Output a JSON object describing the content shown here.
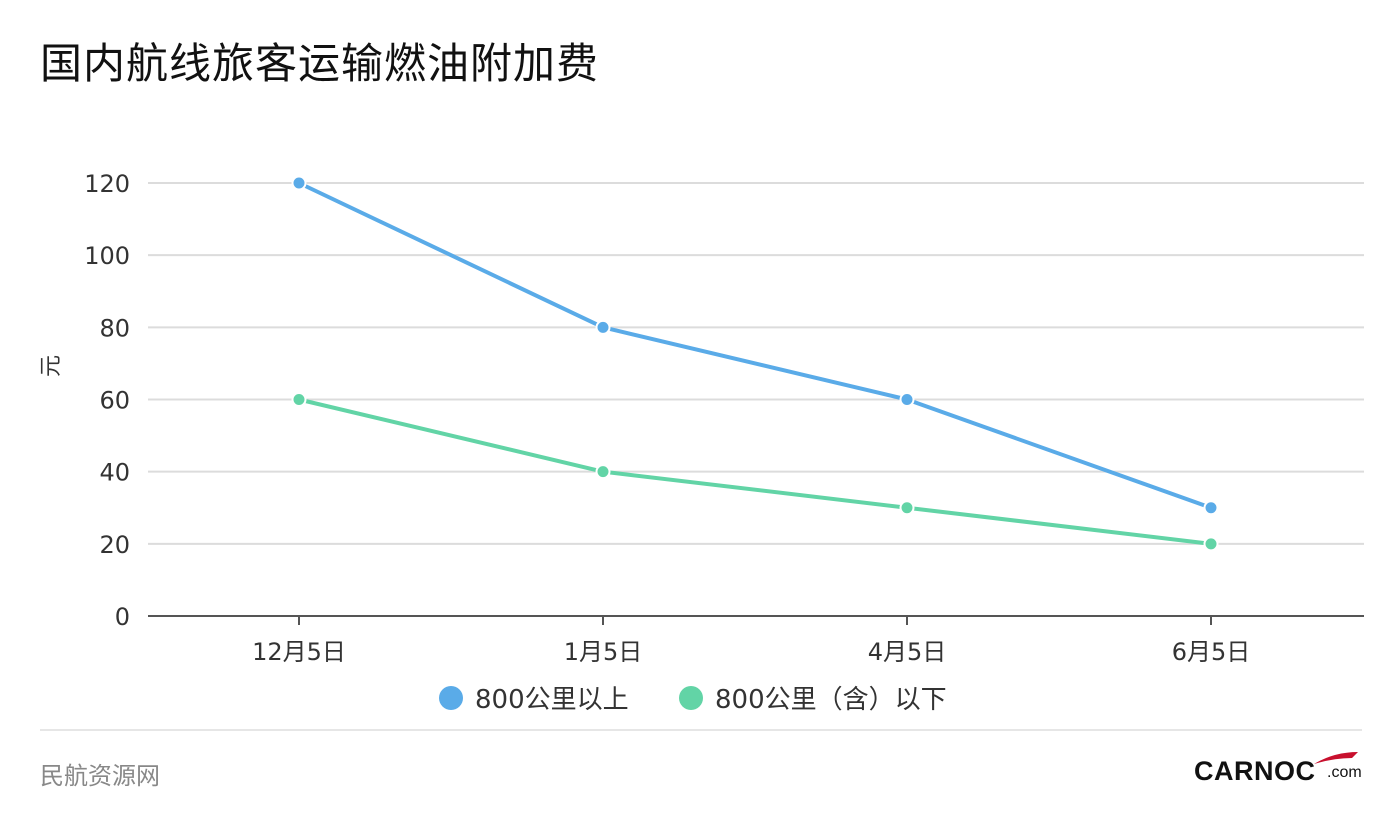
{
  "title": "国内航线旅客运输燃油附加费",
  "source": "民航资源网",
  "logo": {
    "brand": "CARNOC",
    "suffix": ".com",
    "accent_color": "#c8102e"
  },
  "chart_data": {
    "type": "line",
    "categories": [
      "12月5日",
      "1月5日",
      "4月5日",
      "6月5日"
    ],
    "series": [
      {
        "name": "800公里以上",
        "values": [
          120,
          80,
          60,
          30
        ],
        "color": "#5aabe8"
      },
      {
        "name": "800公里（含）以下",
        "values": [
          60,
          40,
          30,
          20
        ],
        "color": "#62d4a6"
      }
    ],
    "ylabel": "元",
    "ylim": [
      0,
      120
    ],
    "yticks": [
      0,
      20,
      40,
      60,
      80,
      100,
      120
    ],
    "grid": true,
    "legend": "bottom"
  }
}
